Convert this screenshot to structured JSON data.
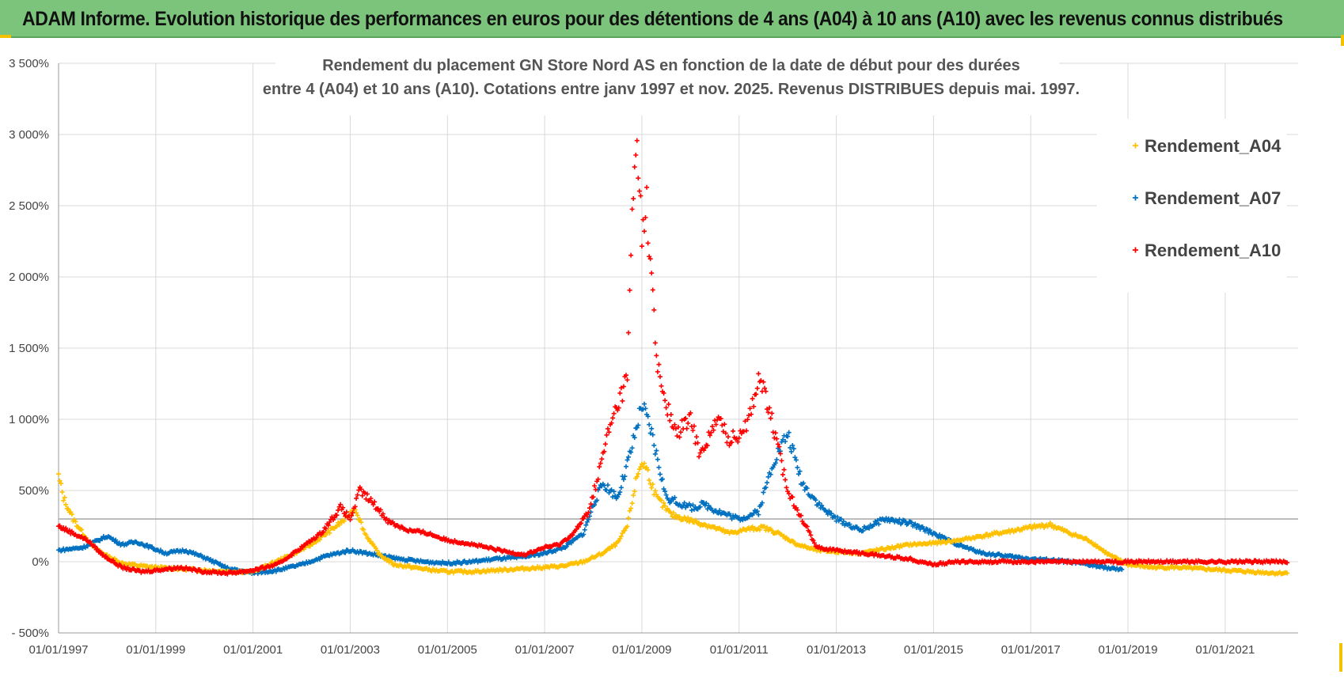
{
  "header": {
    "title": "ADAM Informe. Evolution historique des performances en euros pour des détentions de 4 ans (A04) à 10 ans (A10) avec les revenus connus distribués"
  },
  "colors": {
    "header_bg": "#7cc47c",
    "a04": "#ffc000",
    "a07": "#0070c0",
    "a10": "#ff0000",
    "grid": "#d9d9d9",
    "ref_line": "#a6a6a6"
  },
  "chart_data": {
    "type": "scatter",
    "title": [
      "Rendement du placement GN Store Nord AS en fonction de la date de début pour des durées",
      "entre 4 (A04) et 10 ans (A10). Cotations entre janv 1997 et nov. 2025. Revenus DISTRIBUES depuis mai. 1997."
    ],
    "xlabel": "",
    "ylabel": "",
    "ylim": [
      -500,
      3500
    ],
    "xlim": [
      1997.0,
      2022.5
    ],
    "y_ticks": [
      -500,
      0,
      500,
      1000,
      1500,
      2000,
      2500,
      3000,
      3500
    ],
    "y_tick_labels": [
      "- 500%",
      "0%",
      "500%",
      "1 000%",
      "1 500%",
      "2 000%",
      "2 500%",
      "3 000%",
      "3 500%"
    ],
    "x_ticks": [
      1997,
      1999,
      2001,
      2003,
      2005,
      2007,
      2009,
      2011,
      2013,
      2015,
      2017,
      2019,
      2021
    ],
    "x_tick_labels": [
      "01/01/1997",
      "01/01/1999",
      "01/01/2001",
      "01/01/2003",
      "01/01/2005",
      "01/01/2007",
      "01/01/2009",
      "01/01/2011",
      "01/01/2013",
      "01/01/2015",
      "01/01/2017",
      "01/01/2019",
      "01/01/2021"
    ],
    "reference_line": 300,
    "legend": "top-right",
    "series": [
      {
        "name": "Rendement_A04",
        "color": "#ffc000",
        "x": [
          1997.0,
          1997.1,
          1997.3,
          1997.5,
          1997.7,
          1998.0,
          1998.3,
          1998.7,
          1999.0,
          1999.5,
          2000.0,
          2000.5,
          2001.0,
          2001.4,
          2001.8,
          2002.2,
          2002.6,
          2002.9,
          2003.1,
          2003.3,
          2003.6,
          2003.9,
          2004.3,
          2004.7,
          2005.0,
          2005.5,
          2006.0,
          2006.5,
          2007.0,
          2007.4,
          2007.8,
          2008.2,
          2008.5,
          2008.7,
          2008.9,
          2009.0,
          2009.1,
          2009.3,
          2009.6,
          2010.0,
          2010.4,
          2010.8,
          2011.2,
          2011.5,
          2011.8,
          2012.2,
          2012.6,
          2013.0,
          2013.5,
          2014.0,
          2014.5,
          2015.0,
          2015.5,
          2016.0,
          2016.5,
          2017.0,
          2017.4,
          2017.8,
          2018.2,
          2018.6,
          2019.0,
          2019.5,
          2020.0,
          2020.5,
          2021.0,
          2021.5,
          2022.0,
          2022.3
        ],
        "y": [
          600,
          450,
          300,
          200,
          110,
          40,
          -10,
          -30,
          -40,
          -50,
          -60,
          -70,
          -70,
          -10,
          50,
          120,
          220,
          300,
          380,
          200,
          50,
          -20,
          -40,
          -60,
          -70,
          -70,
          -60,
          -50,
          -40,
          -30,
          0,
          60,
          130,
          250,
          600,
          700,
          650,
          450,
          330,
          290,
          250,
          200,
          230,
          240,
          200,
          120,
          80,
          70,
          60,
          90,
          120,
          130,
          150,
          180,
          210,
          240,
          260,
          200,
          150,
          50,
          -20,
          -40,
          -40,
          -50,
          -60,
          -70,
          -80,
          -80
        ]
      },
      {
        "name": "Rendement_A07",
        "color": "#0070c0",
        "x": [
          1997.0,
          1997.5,
          1998.0,
          1998.3,
          1998.6,
          1998.9,
          1999.2,
          1999.6,
          2000.0,
          2000.5,
          2001.0,
          2001.5,
          2002.0,
          2002.5,
          2003.0,
          2003.5,
          2004.0,
          2004.5,
          2005.0,
          2005.5,
          2006.0,
          2006.5,
          2007.0,
          2007.4,
          2007.8,
          2008.0,
          2008.2,
          2008.5,
          2008.8,
          2009.0,
          2009.2,
          2009.5,
          2010.0,
          2010.3,
          2010.6,
          2011.0,
          2011.4,
          2011.7,
          2012.0,
          2012.3,
          2012.7,
          2013.0,
          2013.5,
          2014.0,
          2014.5,
          2015.0,
          2015.5,
          2016.0,
          2016.5,
          2017.0,
          2017.5,
          2018.0,
          2018.5,
          2018.9
        ],
        "y": [
          80,
          100,
          180,
          120,
          140,
          100,
          60,
          80,
          30,
          -50,
          -80,
          -60,
          -20,
          40,
          80,
          50,
          20,
          0,
          -10,
          0,
          20,
          30,
          60,
          100,
          200,
          400,
          550,
          450,
          800,
          1100,
          900,
          450,
          380,
          400,
          350,
          300,
          350,
          700,
          900,
          550,
          380,
          300,
          220,
          300,
          270,
          200,
          120,
          60,
          40,
          20,
          10,
          -10,
          -40,
          -60
        ]
      },
      {
        "name": "Rendement_A10",
        "color": "#ff0000",
        "x": [
          1997.0,
          1997.3,
          1997.6,
          1997.9,
          1998.3,
          1998.7,
          1999.0,
          1999.5,
          2000.0,
          2000.5,
          2001.0,
          2001.5,
          2002.0,
          2002.4,
          2002.8,
          2003.0,
          2003.2,
          2003.5,
          2003.8,
          2004.2,
          2004.6,
          2005.0,
          2005.4,
          2005.8,
          2006.2,
          2006.6,
          2007.0,
          2007.3,
          2007.6,
          2007.9,
          2008.1,
          2008.3,
          2008.5,
          2008.7,
          2008.8,
          2008.9,
          2009.0,
          2009.1,
          2009.2,
          2009.3,
          2009.5,
          2009.7,
          2010.0,
          2010.2,
          2010.4,
          2010.6,
          2010.8,
          2011.0,
          2011.2,
          2011.4,
          2011.6,
          2011.8,
          2012.0,
          2012.3,
          2012.6,
          2013.0,
          2013.5,
          2014.0,
          2014.5,
          2015.0,
          2015.5,
          2016.0,
          2016.5,
          2017.0,
          2017.5,
          2018.0,
          2018.5,
          2019.0,
          2019.5,
          2020.0,
          2020.5,
          2021.0,
          2021.5,
          2022.0,
          2022.3
        ],
        "y": [
          250,
          200,
          150,
          50,
          -40,
          -70,
          -60,
          -40,
          -70,
          -80,
          -60,
          -20,
          100,
          200,
          380,
          300,
          500,
          400,
          280,
          220,
          200,
          150,
          130,
          100,
          70,
          50,
          100,
          120,
          200,
          350,
          600,
          900,
          1100,
          1300,
          2400,
          3000,
          2300,
          2500,
          2000,
          1400,
          1100,
          900,
          1000,
          750,
          900,
          1000,
          850,
          900,
          1000,
          1300,
          1100,
          800,
          500,
          300,
          100,
          80,
          60,
          40,
          20,
          -20,
          0,
          0,
          0,
          0,
          0,
          0,
          0,
          0,
          0,
          0,
          0,
          0,
          0,
          0,
          0
        ]
      }
    ]
  }
}
